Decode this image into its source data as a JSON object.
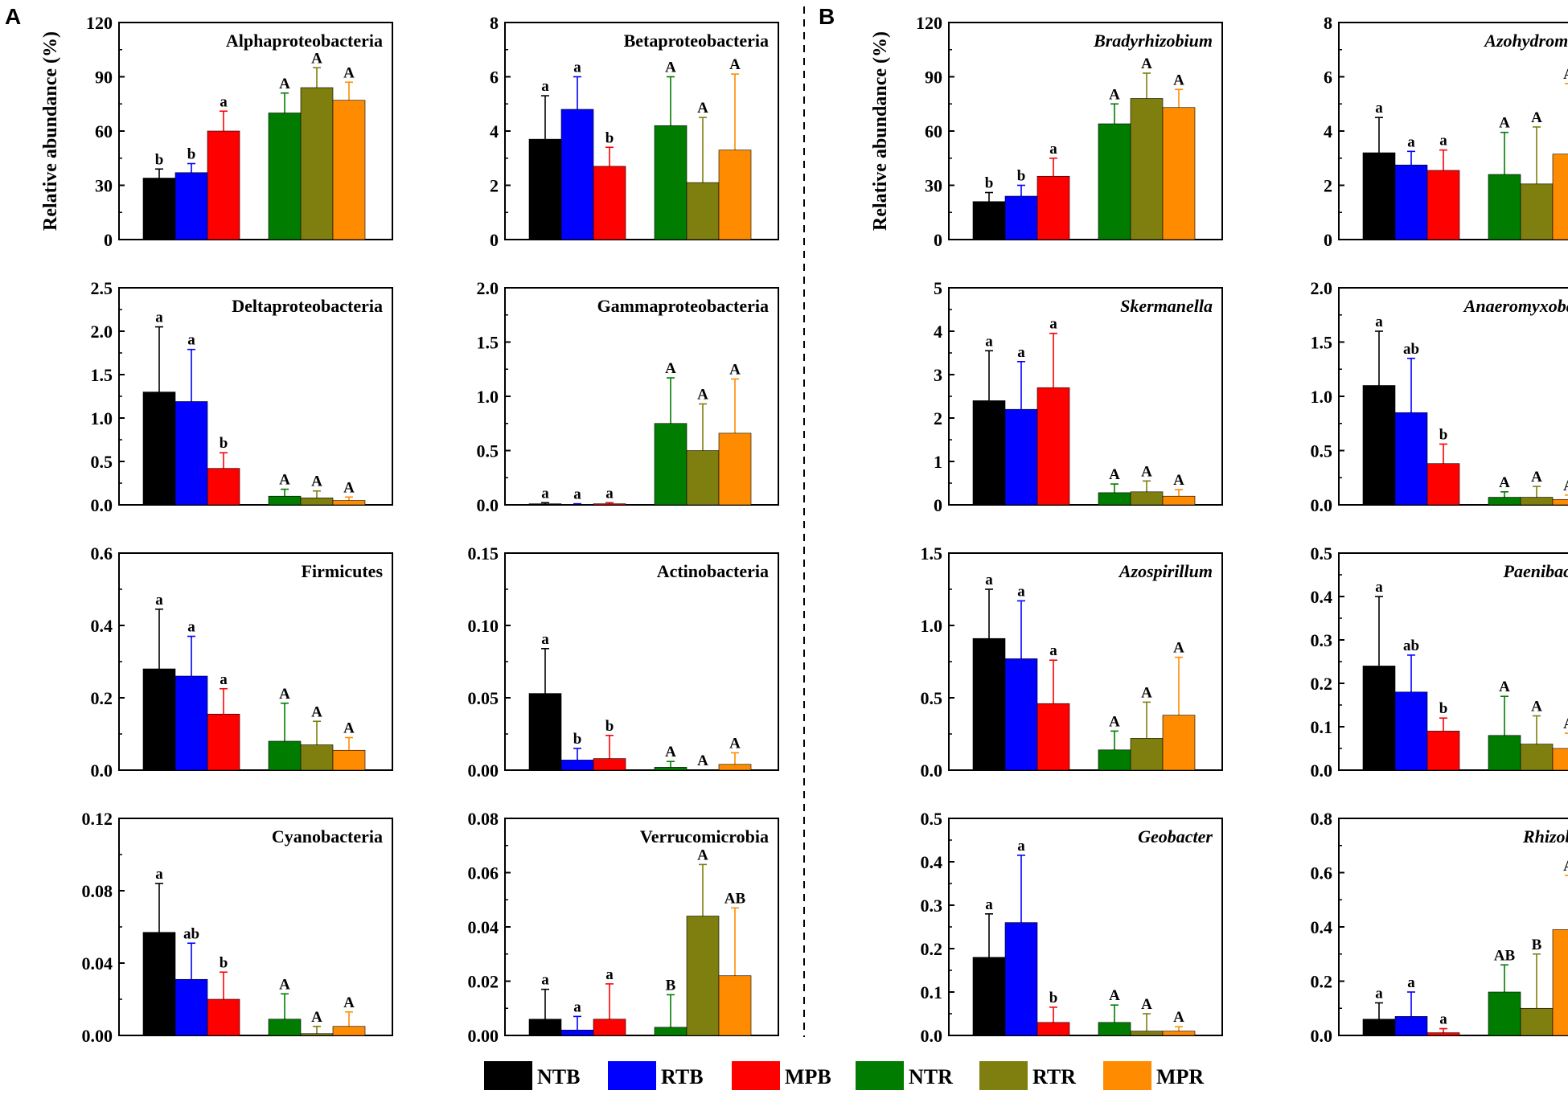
{
  "figure": {
    "panel_labels": [
      "A",
      "B"
    ],
    "ylabel": "Relative abundance (%)"
  },
  "legend": [
    {
      "label": "NTB",
      "color": "#000000"
    },
    {
      "label": "RTB",
      "color": "#0000ff"
    },
    {
      "label": "MPB",
      "color": "#ff0000"
    },
    {
      "label": "NTR",
      "color": "#007d00"
    },
    {
      "label": "RTR",
      "color": "#7f7f10"
    },
    {
      "label": "MPR",
      "color": "#ff8c00"
    }
  ],
  "chart_data": [
    {
      "type": "bar",
      "title": "Alphaproteobacteria",
      "italic": false,
      "ylabel": "Relative abundance (%)",
      "series": [
        "NTB",
        "RTB",
        "MPB",
        "NTR",
        "RTR",
        "MPR"
      ],
      "values": [
        34,
        37,
        60,
        70,
        84,
        77
      ],
      "errors": [
        5,
        5,
        11,
        11,
        11,
        10
      ],
      "letters": [
        "b",
        "b",
        "a",
        "A",
        "A",
        "A"
      ],
      "ylim": [
        0,
        120
      ],
      "yticks": [
        "0",
        "30",
        "60",
        "90",
        "120"
      ]
    },
    {
      "type": "bar",
      "title": "Betaproteobacteria",
      "italic": false,
      "ylabel": "",
      "series": [
        "NTB",
        "RTB",
        "MPB",
        "NTR",
        "RTR",
        "MPR"
      ],
      "values": [
        3.7,
        4.8,
        2.7,
        4.2,
        2.1,
        3.3
      ],
      "errors": [
        1.6,
        1.2,
        0.7,
        1.8,
        2.4,
        2.8
      ],
      "letters": [
        "a",
        "a",
        "b",
        "A",
        "A",
        "A"
      ],
      "ylim": [
        0,
        8
      ],
      "yticks": [
        "0",
        "2",
        "4",
        "6",
        "8"
      ]
    },
    {
      "type": "bar",
      "title": "Deltaproteobacteria",
      "italic": false,
      "ylabel": "",
      "series": [
        "NTB",
        "RTB",
        "MPB",
        "NTR",
        "RTR",
        "MPR"
      ],
      "values": [
        1.3,
        1.19,
        0.42,
        0.1,
        0.08,
        0.05
      ],
      "errors": [
        0.75,
        0.6,
        0.18,
        0.08,
        0.08,
        0.04
      ],
      "letters": [
        "a",
        "a",
        "b",
        "A",
        "A",
        "A"
      ],
      "ylim": [
        0,
        2.5
      ],
      "yticks": [
        "0.0",
        "0.5",
        "1.0",
        "1.5",
        "2.0",
        "2.5"
      ]
    },
    {
      "type": "bar",
      "title": "Gammaproteobacteria",
      "italic": false,
      "ylabel": "",
      "series": [
        "NTB",
        "RTB",
        "MPB",
        "NTR",
        "RTR",
        "MPR"
      ],
      "values": [
        0.01,
        0.005,
        0.01,
        0.75,
        0.5,
        0.66
      ],
      "errors": [
        0.01,
        0.005,
        0.01,
        0.42,
        0.43,
        0.5
      ],
      "letters": [
        "a",
        "a",
        "a",
        "A",
        "A",
        "A"
      ],
      "ylim": [
        0,
        2.0
      ],
      "yticks": [
        "0.0",
        "0.5",
        "1.0",
        "1.5",
        "2.0"
      ]
    },
    {
      "type": "bar",
      "title": "Firmicutes",
      "italic": false,
      "ylabel": "",
      "series": [
        "NTB",
        "RTB",
        "MPB",
        "NTR",
        "RTR",
        "MPR"
      ],
      "values": [
        0.28,
        0.26,
        0.155,
        0.08,
        0.07,
        0.055
      ],
      "errors": [
        0.165,
        0.11,
        0.07,
        0.105,
        0.065,
        0.035
      ],
      "letters": [
        "a",
        "a",
        "a",
        "A",
        "A",
        "A"
      ],
      "ylim": [
        0,
        0.6
      ],
      "yticks": [
        "0.0",
        "0.2",
        "0.4",
        "0.6"
      ]
    },
    {
      "type": "bar",
      "title": "Actinobacteria",
      "italic": false,
      "ylabel": "",
      "series": [
        "NTB",
        "RTB",
        "MPB",
        "NTR",
        "RTR",
        "MPR"
      ],
      "values": [
        0.053,
        0.007,
        0.008,
        0.002,
        0.0,
        0.004
      ],
      "errors": [
        0.031,
        0.008,
        0.016,
        0.004,
        0.0,
        0.008
      ],
      "letters": [
        "a",
        "b",
        "b",
        "A",
        "A",
        "A"
      ],
      "ylim": [
        0,
        0.15
      ],
      "yticks": [
        "0.00",
        "0.05",
        "0.10",
        "0.15"
      ]
    },
    {
      "type": "bar",
      "title": "Cyanobacteria",
      "italic": false,
      "ylabel": "",
      "series": [
        "NTB",
        "RTB",
        "MPB",
        "NTR",
        "RTR",
        "MPR"
      ],
      "values": [
        0.057,
        0.031,
        0.02,
        0.009,
        0.001,
        0.005
      ],
      "errors": [
        0.027,
        0.02,
        0.015,
        0.014,
        0.004,
        0.008
      ],
      "letters": [
        "a",
        "ab",
        "b",
        "A",
        "A",
        "A"
      ],
      "ylim": [
        0,
        0.12
      ],
      "yticks": [
        "0.00",
        "0.04",
        "0.08",
        "0.12"
      ]
    },
    {
      "type": "bar",
      "title": "Verrucomicrobia",
      "italic": false,
      "ylabel": "",
      "series": [
        "NTB",
        "RTB",
        "MPB",
        "NTR",
        "RTR",
        "MPR"
      ],
      "values": [
        0.006,
        0.002,
        0.006,
        0.003,
        0.044,
        0.022
      ],
      "errors": [
        0.011,
        0.005,
        0.013,
        0.012,
        0.019,
        0.025
      ],
      "letters": [
        "a",
        "a",
        "a",
        "B",
        "A",
        "AB"
      ],
      "ylim": [
        0,
        0.08
      ],
      "yticks": [
        "0.00",
        "0.02",
        "0.04",
        "0.06",
        "0.08"
      ]
    },
    {
      "type": "bar",
      "title": "Bradyrhizobium",
      "italic": true,
      "ylabel": "Relative abundance (%)",
      "series": [
        "NTB",
        "RTB",
        "MPB",
        "NTR",
        "RTR",
        "MPR"
      ],
      "values": [
        21,
        24,
        35,
        64,
        78,
        73
      ],
      "errors": [
        5,
        6,
        10,
        11,
        14,
        10
      ],
      "letters": [
        "b",
        "b",
        "a",
        "A",
        "A",
        "A"
      ],
      "ylim": [
        0,
        120
      ],
      "yticks": [
        "0",
        "30",
        "60",
        "90",
        "120"
      ]
    },
    {
      "type": "bar",
      "title": "Azohydromonas",
      "italic": true,
      "ylabel": "",
      "series": [
        "NTB",
        "RTB",
        "MPB",
        "NTR",
        "RTR",
        "MPR"
      ],
      "values": [
        3.2,
        2.75,
        2.55,
        2.4,
        2.05,
        3.15
      ],
      "errors": [
        1.3,
        0.5,
        0.75,
        1.55,
        2.1,
        2.6
      ],
      "letters": [
        "a",
        "a",
        "a",
        "A",
        "A",
        "A"
      ],
      "ylim": [
        0,
        8
      ],
      "yticks": [
        "0",
        "2",
        "4",
        "6",
        "8"
      ]
    },
    {
      "type": "bar",
      "title": "Skermanella",
      "italic": true,
      "ylabel": "",
      "series": [
        "NTB",
        "RTB",
        "MPB",
        "NTR",
        "RTR",
        "MPR"
      ],
      "values": [
        2.4,
        2.2,
        2.7,
        0.28,
        0.3,
        0.2
      ],
      "errors": [
        1.15,
        1.1,
        1.25,
        0.2,
        0.25,
        0.15
      ],
      "letters": [
        "a",
        "a",
        "a",
        "A",
        "A",
        "A"
      ],
      "ylim": [
        0,
        5
      ],
      "yticks": [
        "0",
        "1",
        "2",
        "3",
        "4",
        "5"
      ]
    },
    {
      "type": "bar",
      "title": "Anaeromyxobacter",
      "italic": true,
      "ylabel": "",
      "series": [
        "NTB",
        "RTB",
        "MPB",
        "NTR",
        "RTR",
        "MPR"
      ],
      "values": [
        1.1,
        0.85,
        0.38,
        0.07,
        0.07,
        0.05
      ],
      "errors": [
        0.5,
        0.5,
        0.18,
        0.05,
        0.1,
        0.04
      ],
      "letters": [
        "a",
        "ab",
        "b",
        "A",
        "A",
        "A"
      ],
      "ylim": [
        0,
        2.0
      ],
      "yticks": [
        "0.0",
        "0.5",
        "1.0",
        "1.5",
        "2.0"
      ]
    },
    {
      "type": "bar",
      "title": "Azospirillum",
      "italic": true,
      "ylabel": "",
      "series": [
        "NTB",
        "RTB",
        "MPB",
        "NTR",
        "RTR",
        "MPR"
      ],
      "values": [
        0.91,
        0.77,
        0.46,
        0.14,
        0.22,
        0.38
      ],
      "errors": [
        0.34,
        0.4,
        0.3,
        0.13,
        0.25,
        0.4
      ],
      "letters": [
        "a",
        "a",
        "a",
        "A",
        "A",
        "A"
      ],
      "ylim": [
        0,
        1.5
      ],
      "yticks": [
        "0.0",
        "0.5",
        "1.0",
        "1.5"
      ]
    },
    {
      "type": "bar",
      "title": "Paenibacillus",
      "italic": true,
      "ylabel": "",
      "series": [
        "NTB",
        "RTB",
        "MPB",
        "NTR",
        "RTR",
        "MPR"
      ],
      "values": [
        0.24,
        0.18,
        0.09,
        0.08,
        0.06,
        0.05
      ],
      "errors": [
        0.16,
        0.085,
        0.03,
        0.09,
        0.065,
        0.035
      ],
      "letters": [
        "a",
        "ab",
        "b",
        "A",
        "A",
        "A"
      ],
      "ylim": [
        0,
        0.5
      ],
      "yticks": [
        "0.0",
        "0.1",
        "0.2",
        "0.3",
        "0.4",
        "0.5"
      ]
    },
    {
      "type": "bar",
      "title": "Geobacter",
      "italic": true,
      "ylabel": "",
      "series": [
        "NTB",
        "RTB",
        "MPB",
        "NTR",
        "RTR",
        "MPR"
      ],
      "values": [
        0.18,
        0.26,
        0.03,
        0.03,
        0.01,
        0.01
      ],
      "errors": [
        0.1,
        0.155,
        0.035,
        0.04,
        0.04,
        0.01
      ],
      "letters": [
        "a",
        "a",
        "b",
        "A",
        "A",
        "A"
      ],
      "ylim": [
        0,
        0.5
      ],
      "yticks": [
        "0.0",
        "0.1",
        "0.2",
        "0.3",
        "0.4",
        "0.5"
      ]
    },
    {
      "type": "bar",
      "title": "Rhizobium",
      "italic": true,
      "ylabel": "",
      "series": [
        "NTB",
        "RTB",
        "MPB",
        "NTR",
        "RTR",
        "MPR"
      ],
      "values": [
        0.06,
        0.07,
        0.01,
        0.16,
        0.1,
        0.39
      ],
      "errors": [
        0.06,
        0.09,
        0.015,
        0.1,
        0.2,
        0.2
      ],
      "letters": [
        "a",
        "a",
        "a",
        "AB",
        "B",
        "A"
      ],
      "ylim": [
        0,
        0.8
      ],
      "yticks": [
        "0.0",
        "0.2",
        "0.4",
        "0.6",
        "0.8"
      ]
    }
  ]
}
